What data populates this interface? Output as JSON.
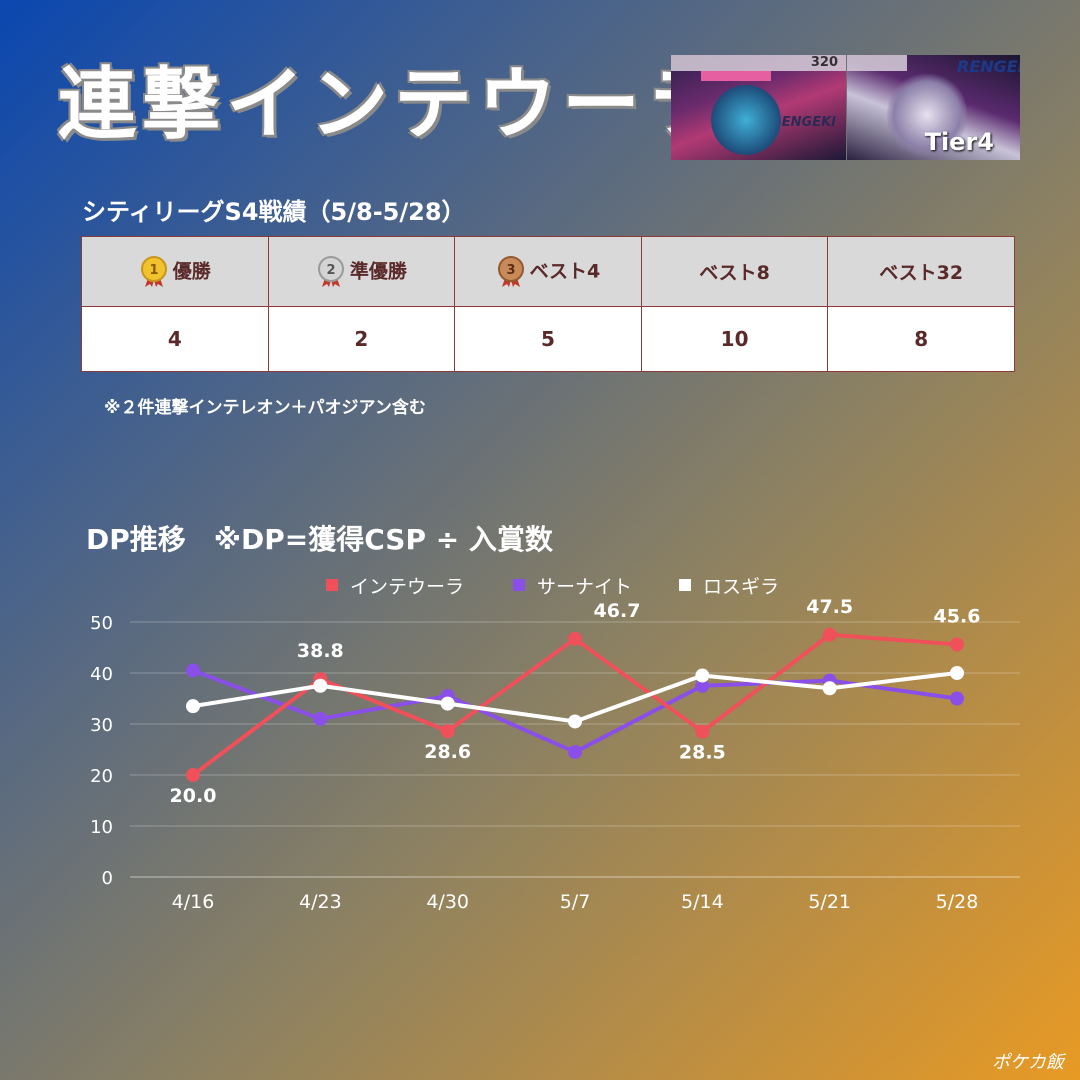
{
  "header": {
    "title": "連撃インテウーラ",
    "tier_label": "Tier4",
    "card1_hp": "320",
    "card1_logo": "RENGEKI",
    "card2_logo": "RENGEKI"
  },
  "results": {
    "subtitle": "シティリーグS4戦績（5/8-5/28）",
    "columns": [
      {
        "label": "優勝",
        "medal": "gold",
        "medal_number": "1"
      },
      {
        "label": "準優勝",
        "medal": "silver",
        "medal_number": "2"
      },
      {
        "label": "ベスト4",
        "medal": "bronze",
        "medal_number": "3"
      },
      {
        "label": "ベスト8",
        "medal": "",
        "medal_number": ""
      },
      {
        "label": "ベスト32",
        "medal": "",
        "medal_number": ""
      }
    ],
    "values": [
      "4",
      "2",
      "5",
      "10",
      "8"
    ],
    "note": "※２件連撃インテレオン＋パオジアン含む"
  },
  "dp_section": {
    "title": "DP推移　※DP=獲得CSP ÷ 入賞数"
  },
  "chart_data": {
    "type": "line",
    "categories": [
      "4/16",
      "4/23",
      "4/30",
      "5/7",
      "5/14",
      "5/21",
      "5/28"
    ],
    "ylim": [
      0,
      50
    ],
    "yticks": [
      0,
      10,
      20,
      30,
      40,
      50
    ],
    "grid": true,
    "legend_position": "top",
    "series": [
      {
        "name": "インテウーラ",
        "color": "#f0505a",
        "values": [
          20.0,
          38.8,
          28.6,
          46.7,
          28.5,
          47.5,
          45.6
        ],
        "labels": [
          "20.0",
          "38.8",
          "28.6",
          "46.7",
          "28.5",
          "47.5",
          "45.6"
        ]
      },
      {
        "name": "サーナイト",
        "color": "#8a4fe8",
        "values": [
          40.5,
          31.0,
          35.5,
          24.5,
          37.5,
          38.5,
          35.0
        ]
      },
      {
        "name": "ロスギラ",
        "color": "#ffffff",
        "values": [
          33.5,
          37.5,
          34.0,
          30.5,
          39.5,
          37.0,
          40.0
        ]
      }
    ]
  },
  "footer": {
    "signature": "ポケカ飯"
  }
}
